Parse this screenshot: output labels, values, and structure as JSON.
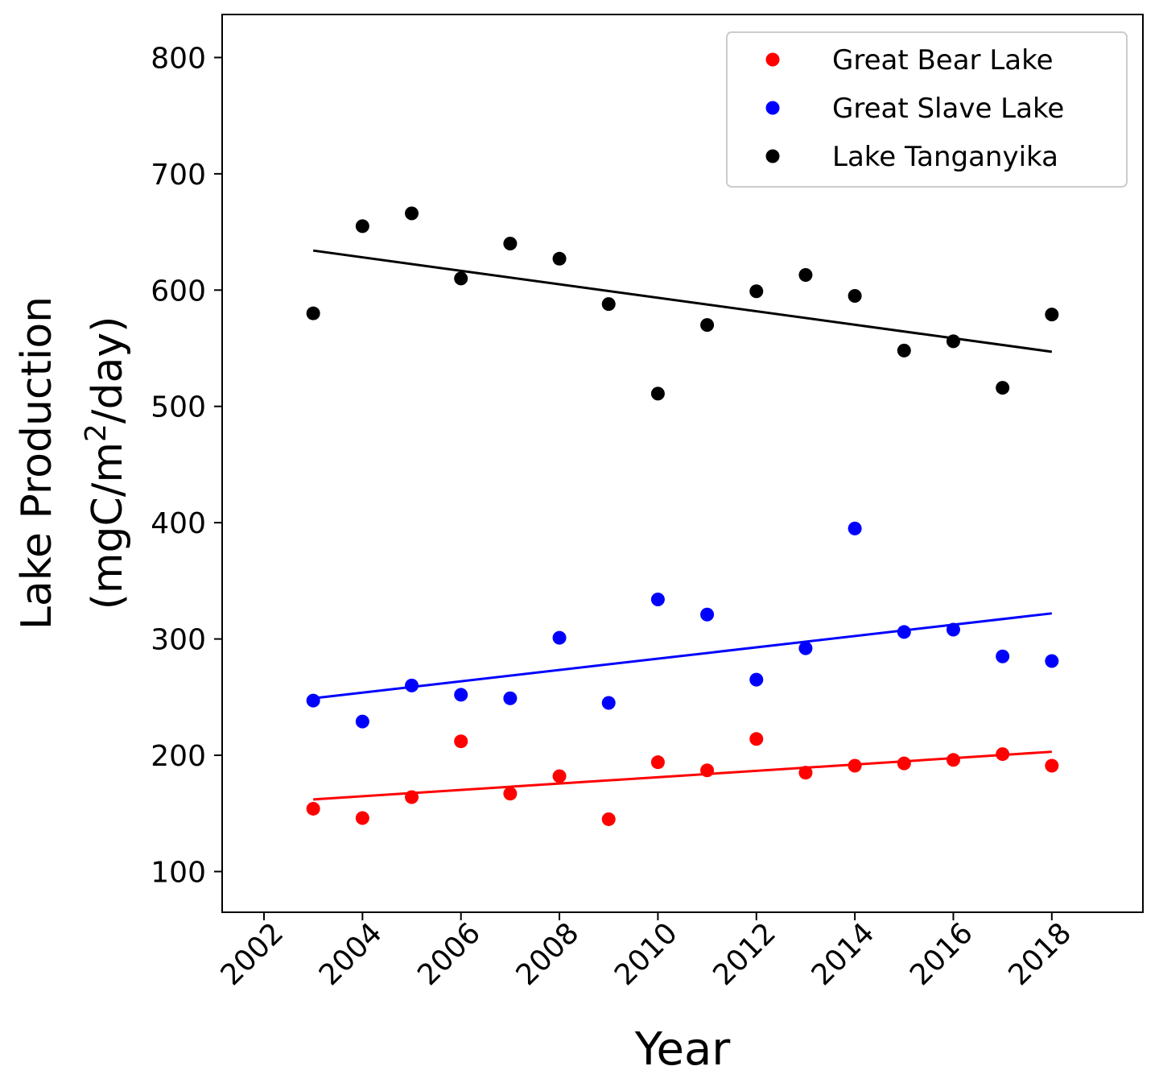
{
  "chart_data": {
    "type": "scatter",
    "xlabel": "Year",
    "ylabel_line1": "Lake Production",
    "ylabel_line2_pre": "(mgC/m",
    "ylabel_line2_sup": "2",
    "ylabel_line2_post": "/day)",
    "xlim": [
      2001.15,
      2019.85
    ],
    "ylim": [
      65,
      837
    ],
    "xticks": [
      2002,
      2004,
      2006,
      2008,
      2010,
      2012,
      2014,
      2016,
      2018
    ],
    "xtick_labels": [
      "2002",
      "2004",
      "2006",
      "2008",
      "2010",
      "2012",
      "2014",
      "2016",
      "2018"
    ],
    "yticks": [
      100,
      200,
      300,
      400,
      500,
      600,
      700,
      800
    ],
    "ytick_labels": [
      "100",
      "200",
      "300",
      "400",
      "500",
      "600",
      "700",
      "800"
    ],
    "grid": false,
    "legend_placement": "top-right",
    "x": [
      2003,
      2004,
      2005,
      2006,
      2007,
      2008,
      2009,
      2010,
      2011,
      2012,
      2013,
      2014,
      2015,
      2016,
      2017,
      2018
    ],
    "series": [
      {
        "name": "Great Bear Lake",
        "color": "#ff0000",
        "values": [
          154,
          146,
          164,
          212,
          167,
          182,
          145,
          194,
          187,
          214,
          185,
          191,
          193,
          196,
          201,
          191
        ],
        "trend": [
          [
            2003,
            162
          ],
          [
            2018,
            203
          ]
        ]
      },
      {
        "name": "Great Slave Lake",
        "color": "#0000ff",
        "values": [
          247,
          229,
          260,
          252,
          249,
          301,
          245,
          334,
          321,
          265,
          292,
          395,
          306,
          308,
          285,
          281
        ],
        "trend": [
          [
            2003,
            249
          ],
          [
            2018,
            322
          ]
        ]
      },
      {
        "name": "Lake Tanganyika",
        "color": "#000000",
        "values": [
          580,
          655,
          666,
          610,
          640,
          627,
          588,
          511,
          570,
          599,
          613,
          595,
          548,
          556,
          516,
          579
        ],
        "trend": [
          [
            2003,
            634
          ],
          [
            2018,
            547
          ]
        ]
      }
    ]
  }
}
